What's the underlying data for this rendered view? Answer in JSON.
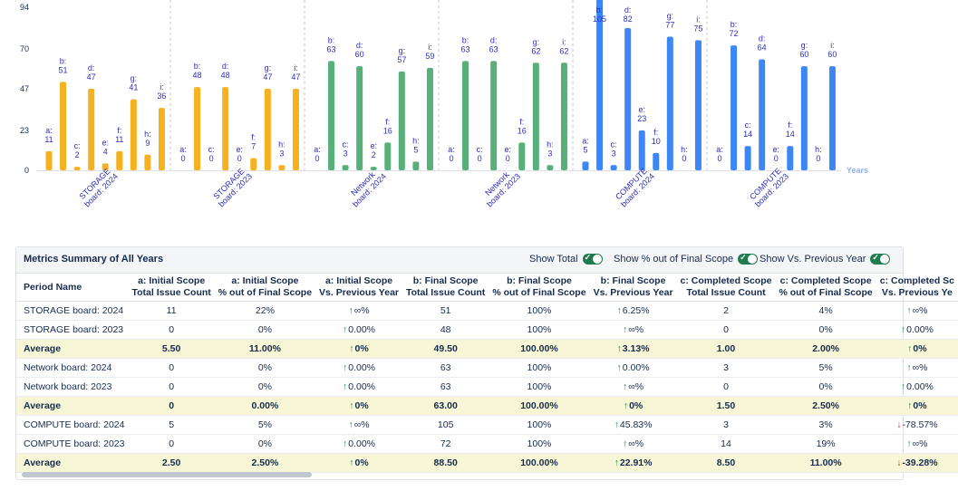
{
  "chart_data": {
    "type": "bar",
    "y_ticks": [
      0,
      23,
      47,
      70,
      94
    ],
    "ylim": [
      0,
      94
    ],
    "x_axis_label": "Years",
    "groups": [
      {
        "label": "STORAGE board: 2024",
        "color": "#f5b120",
        "bars": [
          {
            "key": "a",
            "value": 11
          },
          {
            "key": "b",
            "value": 51
          },
          {
            "key": "c",
            "value": 2
          },
          {
            "key": "d",
            "value": 47
          },
          {
            "key": "e",
            "value": 4
          },
          {
            "key": "f",
            "value": 11
          },
          {
            "key": "g",
            "value": 41
          },
          {
            "key": "h",
            "value": 9
          },
          {
            "key": "i",
            "value": 36
          }
        ]
      },
      {
        "label": "STORAGE board: 2023",
        "color": "#f5b120",
        "bars": [
          {
            "key": "a",
            "value": 0
          },
          {
            "key": "b",
            "value": 48
          },
          {
            "key": "c",
            "value": 0
          },
          {
            "key": "d",
            "value": 48
          },
          {
            "key": "e",
            "value": 0
          },
          {
            "key": "f",
            "value": 7
          },
          {
            "key": "g",
            "value": 47
          },
          {
            "key": "h",
            "value": 3
          },
          {
            "key": "i",
            "value": 47
          }
        ]
      },
      {
        "label": "Network board: 2024",
        "color": "#57b07a",
        "bars": [
          {
            "key": "a",
            "value": 0
          },
          {
            "key": "b",
            "value": 63
          },
          {
            "key": "c",
            "value": 3
          },
          {
            "key": "d",
            "value": 60
          },
          {
            "key": "e",
            "value": 2
          },
          {
            "key": "f",
            "value": 16
          },
          {
            "key": "g",
            "value": 57
          },
          {
            "key": "h",
            "value": 5
          },
          {
            "key": "i",
            "value": 59
          }
        ]
      },
      {
        "label": "Network board: 2023",
        "color": "#57b07a",
        "bars": [
          {
            "key": "a",
            "value": 0
          },
          {
            "key": "b",
            "value": 63
          },
          {
            "key": "c",
            "value": 0
          },
          {
            "key": "d",
            "value": 63
          },
          {
            "key": "e",
            "value": 0
          },
          {
            "key": "f",
            "value": 16
          },
          {
            "key": "g",
            "value": 62
          },
          {
            "key": "h",
            "value": 3
          },
          {
            "key": "i",
            "value": 62
          }
        ]
      },
      {
        "label": "COMPUTE board: 2024",
        "color": "#3d86f5",
        "bars": [
          {
            "key": "a",
            "value": 5
          },
          {
            "key": "b",
            "value": 105
          },
          {
            "key": "c",
            "value": 3
          },
          {
            "key": "d",
            "value": 82
          },
          {
            "key": "e",
            "value": 23
          },
          {
            "key": "f",
            "value": 10
          },
          {
            "key": "g",
            "value": 77
          },
          {
            "key": "h",
            "value": 0
          },
          {
            "key": "i",
            "value": 75
          }
        ]
      },
      {
        "label": "COMPUTE board: 2023",
        "color": "#3d86f5",
        "bars": [
          {
            "key": "a",
            "value": 0
          },
          {
            "key": "b",
            "value": 72
          },
          {
            "key": "c",
            "value": 14
          },
          {
            "key": "d",
            "value": 64
          },
          {
            "key": "e",
            "value": 0
          },
          {
            "key": "f",
            "value": 14
          },
          {
            "key": "g",
            "value": 60
          },
          {
            "key": "h",
            "value": 0
          },
          {
            "key": "i",
            "value": 60
          }
        ]
      }
    ]
  },
  "summary": {
    "title": "Metrics Summary of All Years",
    "toggles": [
      {
        "label": "Show Total",
        "checked": true
      },
      {
        "label": "Show % out of Final Scope",
        "checked": true
      },
      {
        "label": "Show Vs. Previous Year",
        "checked": true
      }
    ],
    "columns": [
      {
        "line1": "Period Name",
        "line2": ""
      },
      {
        "line1": "a: Initial Scope",
        "line2": "Total Issue Count"
      },
      {
        "line1": "a: Initial Scope",
        "line2": "% out of Final Scope"
      },
      {
        "line1": "a: Initial Scope",
        "line2": "Vs. Previous Year"
      },
      {
        "line1": "b: Final Scope",
        "line2": "Total Issue Count"
      },
      {
        "line1": "b: Final Scope",
        "line2": "% out of Final Scope"
      },
      {
        "line1": "b: Final Scope",
        "line2": "Vs. Previous Year"
      },
      {
        "line1": "c: Completed Scope",
        "line2": "Total Issue Count"
      },
      {
        "line1": "c: Completed Scope",
        "line2": "% out of Final Scope"
      },
      {
        "line1": "c: Completed Sc",
        "line2": "Vs. Previous Ye"
      }
    ],
    "rows": [
      {
        "avg": false,
        "cells": [
          "STORAGE board: 2024",
          "11",
          "22%",
          {
            "dir": "up",
            "text": "∞%"
          },
          "51",
          "100%",
          {
            "dir": "up",
            "text": "6.25%"
          },
          "2",
          "4%",
          {
            "dir": "up",
            "text": "∞%"
          }
        ]
      },
      {
        "avg": false,
        "cells": [
          "STORAGE board: 2023",
          "0",
          "0%",
          {
            "dir": "up",
            "text": "0.00%"
          },
          "48",
          "100%",
          {
            "dir": "up",
            "text": "∞%"
          },
          "0",
          "0%",
          {
            "dir": "up",
            "text": "0.00%"
          }
        ]
      },
      {
        "avg": true,
        "cells": [
          "Average",
          "5.50",
          "11.00%",
          {
            "dir": "up",
            "text": "0%"
          },
          "49.50",
          "100.00%",
          {
            "dir": "up",
            "text": "3.13%"
          },
          "1.00",
          "2.00%",
          {
            "dir": "up",
            "text": "0%"
          }
        ]
      },
      {
        "avg": false,
        "cells": [
          "Network board: 2024",
          "0",
          "0%",
          {
            "dir": "up",
            "text": "0.00%"
          },
          "63",
          "100%",
          {
            "dir": "up",
            "text": "0.00%"
          },
          "3",
          "5%",
          {
            "dir": "up",
            "text": "∞%"
          }
        ]
      },
      {
        "avg": false,
        "cells": [
          "Network board: 2023",
          "0",
          "0%",
          {
            "dir": "up",
            "text": "0.00%"
          },
          "63",
          "100%",
          {
            "dir": "up",
            "text": "∞%"
          },
          "0",
          "0%",
          {
            "dir": "up",
            "text": "0.00%"
          }
        ]
      },
      {
        "avg": true,
        "cells": [
          "Average",
          "0",
          "0.00%",
          {
            "dir": "up",
            "text": "0%"
          },
          "63.00",
          "100.00%",
          {
            "dir": "up",
            "text": "0%"
          },
          "1.50",
          "2.50%",
          {
            "dir": "up",
            "text": "0%"
          }
        ]
      },
      {
        "avg": false,
        "cells": [
          "COMPUTE board: 2024",
          "5",
          "5%",
          {
            "dir": "up",
            "text": "∞%"
          },
          "105",
          "100%",
          {
            "dir": "up",
            "text": "45.83%"
          },
          "3",
          "3%",
          {
            "dir": "down",
            "text": "-78.57%"
          }
        ]
      },
      {
        "avg": false,
        "cells": [
          "COMPUTE board: 2023",
          "0",
          "0%",
          {
            "dir": "up",
            "text": "0.00%"
          },
          "72",
          "100%",
          {
            "dir": "up",
            "text": "∞%"
          },
          "14",
          "19%",
          {
            "dir": "up",
            "text": "∞%"
          }
        ]
      },
      {
        "avg": true,
        "cells": [
          "Average",
          "2.50",
          "2.50%",
          {
            "dir": "up",
            "text": "0%"
          },
          "88.50",
          "100.00%",
          {
            "dir": "up",
            "text": "22.91%"
          },
          "8.50",
          "11.00%",
          {
            "dir": "down",
            "text": "-39.28%"
          }
        ]
      }
    ]
  }
}
